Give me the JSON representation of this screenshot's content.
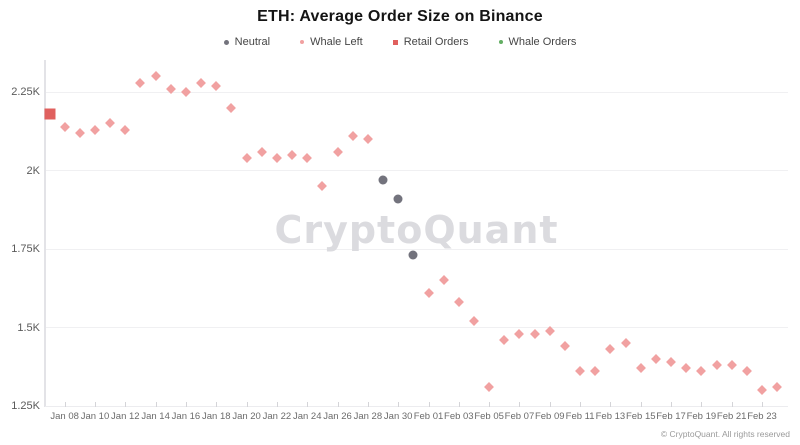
{
  "chart_data": {
    "type": "scatter",
    "title": "ETH: Average Order Size on Binance",
    "watermark": "CryptoQuant",
    "attribution": "© CryptoQuant. All rights reserved",
    "unit": "K (thousand USD equivalents, values read from y-axis)",
    "grid": true,
    "legend_position": "top-center",
    "y_axis": {
      "range": [
        1.25,
        2.35
      ],
      "ticks": [
        {
          "label": "2.25K",
          "value": 2.25
        },
        {
          "label": "2K",
          "value": 2.0
        },
        {
          "label": "1.75K",
          "value": 1.75
        },
        {
          "label": "1.5K",
          "value": 1.5
        },
        {
          "label": "1.25K",
          "value": 1.25
        }
      ]
    },
    "x_axis": {
      "tick_labels": [
        "Jan 08",
        "Jan 10",
        "Jan 12",
        "Jan 14",
        "Jan 16",
        "Jan 18",
        "Jan 20",
        "Jan 22",
        "Jan 24",
        "Jan 26",
        "Jan 28",
        "Jan 30",
        "Feb 01",
        "Feb 03",
        "Feb 05",
        "Feb 07",
        "Feb 09",
        "Feb 11",
        "Feb 13",
        "Feb 15",
        "Feb 17",
        "Feb 19",
        "Feb 21",
        "Feb 23"
      ]
    },
    "colors": {
      "neutral": "#73737D",
      "whale_left": "#F1A1A1",
      "retail": "#E0605E",
      "whale_orders": "#63AE63"
    },
    "legend": [
      {
        "label": "Neutral",
        "category": "neutral"
      },
      {
        "label": "Whale Left",
        "category": "whale_left"
      },
      {
        "label": "Retail Orders",
        "category": "retail"
      },
      {
        "label": "Whale Orders",
        "category": "whale_orders"
      }
    ],
    "points": [
      {
        "date": "Jan 07",
        "value": 2.18,
        "category": "retail"
      },
      {
        "date": "Jan 08",
        "value": 2.14,
        "category": "whale_left"
      },
      {
        "date": "Jan 09",
        "value": 2.12,
        "category": "whale_left"
      },
      {
        "date": "Jan 10",
        "value": 2.13,
        "category": "whale_left"
      },
      {
        "date": "Jan 11",
        "value": 2.15,
        "category": "whale_left"
      },
      {
        "date": "Jan 12",
        "value": 2.13,
        "category": "whale_left"
      },
      {
        "date": "Jan 13",
        "value": 2.28,
        "category": "whale_left"
      },
      {
        "date": "Jan 14",
        "value": 2.3,
        "category": "whale_left"
      },
      {
        "date": "Jan 15",
        "value": 2.26,
        "category": "whale_left"
      },
      {
        "date": "Jan 16",
        "value": 2.25,
        "category": "whale_left"
      },
      {
        "date": "Jan 17",
        "value": 2.28,
        "category": "whale_left"
      },
      {
        "date": "Jan 18",
        "value": 2.27,
        "category": "whale_left"
      },
      {
        "date": "Jan 19",
        "value": 2.2,
        "category": "whale_left"
      },
      {
        "date": "Jan 20",
        "value": 2.04,
        "category": "whale_left"
      },
      {
        "date": "Jan 21",
        "value": 2.06,
        "category": "whale_left"
      },
      {
        "date": "Jan 22",
        "value": 2.04,
        "category": "whale_left"
      },
      {
        "date": "Jan 23",
        "value": 2.05,
        "category": "whale_left"
      },
      {
        "date": "Jan 24",
        "value": 2.04,
        "category": "whale_left"
      },
      {
        "date": "Jan 25",
        "value": 1.95,
        "category": "whale_left"
      },
      {
        "date": "Jan 26",
        "value": 2.06,
        "category": "whale_left"
      },
      {
        "date": "Jan 27",
        "value": 2.11,
        "category": "whale_left"
      },
      {
        "date": "Jan 28",
        "value": 2.1,
        "category": "whale_left"
      },
      {
        "date": "Jan 29",
        "value": 1.97,
        "category": "neutral"
      },
      {
        "date": "Jan 30",
        "value": 1.91,
        "category": "neutral"
      },
      {
        "date": "Jan 31",
        "value": 1.73,
        "category": "neutral"
      },
      {
        "date": "Feb 01",
        "value": 1.61,
        "category": "whale_left"
      },
      {
        "date": "Feb 02",
        "value": 1.65,
        "category": "whale_left"
      },
      {
        "date": "Feb 03",
        "value": 1.58,
        "category": "whale_left"
      },
      {
        "date": "Feb 04",
        "value": 1.52,
        "category": "whale_left"
      },
      {
        "date": "Feb 05",
        "value": 1.31,
        "category": "whale_left"
      },
      {
        "date": "Feb 06",
        "value": 1.46,
        "category": "whale_left"
      },
      {
        "date": "Feb 07",
        "value": 1.48,
        "category": "whale_left"
      },
      {
        "date": "Feb 08",
        "value": 1.48,
        "category": "whale_left"
      },
      {
        "date": "Feb 09",
        "value": 1.49,
        "category": "whale_left"
      },
      {
        "date": "Feb 10",
        "value": 1.44,
        "category": "whale_left"
      },
      {
        "date": "Feb 11",
        "value": 1.36,
        "category": "whale_left"
      },
      {
        "date": "Feb 12",
        "value": 1.36,
        "category": "whale_left"
      },
      {
        "date": "Feb 13",
        "value": 1.43,
        "category": "whale_left"
      },
      {
        "date": "Feb 14",
        "value": 1.45,
        "category": "whale_left"
      },
      {
        "date": "Feb 15",
        "value": 1.37,
        "category": "whale_left"
      },
      {
        "date": "Feb 16",
        "value": 1.4,
        "category": "whale_left"
      },
      {
        "date": "Feb 17",
        "value": 1.39,
        "category": "whale_left"
      },
      {
        "date": "Feb 18",
        "value": 1.37,
        "category": "whale_left"
      },
      {
        "date": "Feb 19",
        "value": 1.36,
        "category": "whale_left"
      },
      {
        "date": "Feb 20",
        "value": 1.38,
        "category": "whale_left"
      },
      {
        "date": "Feb 21",
        "value": 1.38,
        "category": "whale_left"
      },
      {
        "date": "Feb 22",
        "value": 1.36,
        "category": "whale_left"
      },
      {
        "date": "Feb 23",
        "value": 1.3,
        "category": "whale_left"
      },
      {
        "date": "Feb 24",
        "value": 1.31,
        "category": "whale_left"
      }
    ]
  }
}
